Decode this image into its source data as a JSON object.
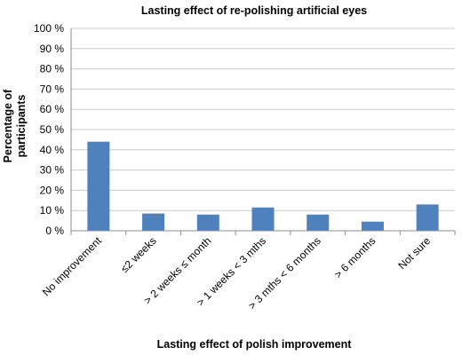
{
  "chart_data": {
    "type": "bar",
    "title": "Lasting effect of re-polishing artificial eyes",
    "xlabel": "Lasting effect of polish improvement",
    "ylabel_lines": [
      "Percentage of",
      "participants"
    ],
    "categories": [
      "No improvement",
      "≤2 weeks",
      "> 2 weeks ≤ month",
      "> 1 weeks < 3 mths",
      "> 3 mths < 6 months",
      "> 6 months",
      "Not sure"
    ],
    "values": [
      44,
      8.5,
      8,
      11.5,
      8,
      4.5,
      13
    ],
    "ylim": [
      0,
      100
    ],
    "yticks": [
      "0 %",
      "10 %",
      "20 %",
      "30 %",
      "40 %",
      "50 %",
      "60 %",
      "70 %",
      "80 %",
      "90 %",
      "100 %"
    ],
    "grid": true,
    "legend": "none",
    "bar_color": "#4f81bd"
  }
}
